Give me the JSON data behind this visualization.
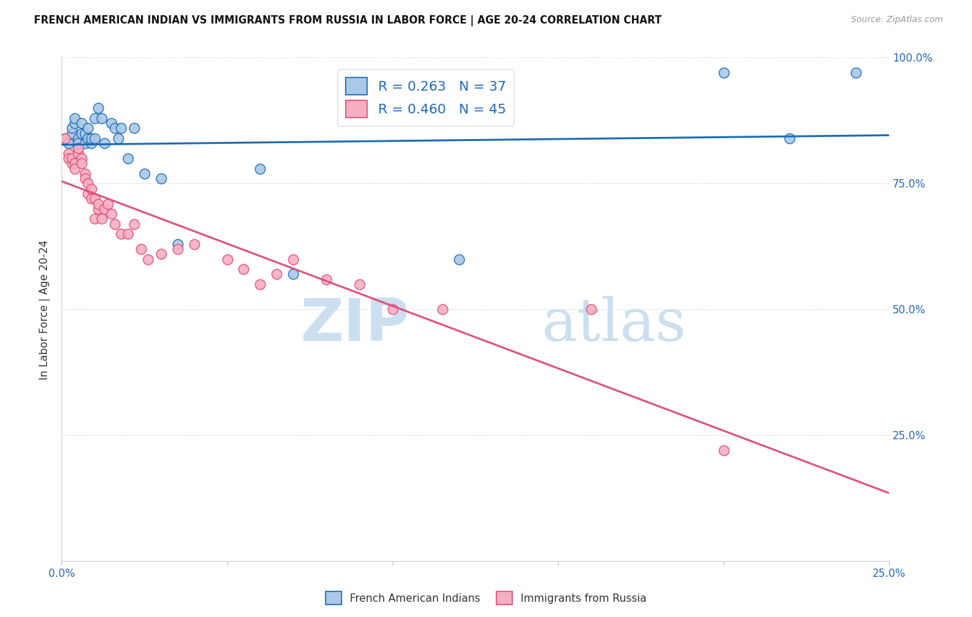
{
  "title": "FRENCH AMERICAN INDIAN VS IMMIGRANTS FROM RUSSIA IN LABOR FORCE | AGE 20-24 CORRELATION CHART",
  "source": "Source: ZipAtlas.com",
  "ylabel": "In Labor Force | Age 20-24",
  "x_min": 0.0,
  "x_max": 0.25,
  "y_min": 0.0,
  "y_max": 1.0,
  "x_ticks": [
    0.0,
    0.05,
    0.1,
    0.15,
    0.2,
    0.25
  ],
  "x_tick_labels": [
    "0.0%",
    "",
    "",
    "",
    "",
    "25.0%"
  ],
  "y_ticks": [
    0.0,
    0.25,
    0.5,
    0.75,
    1.0
  ],
  "y_tick_labels_right": [
    "",
    "25.0%",
    "50.0%",
    "75.0%",
    "100.0%"
  ],
  "blue_label": "French American Indians",
  "pink_label": "Immigrants from Russia",
  "blue_R": 0.263,
  "blue_N": 37,
  "pink_R": 0.46,
  "pink_N": 45,
  "blue_color": "#aac8e8",
  "pink_color": "#f5afc0",
  "blue_line_color": "#1a6bb5",
  "pink_line_color": "#e0507a",
  "watermark_zip": "ZIP",
  "watermark_atlas": "atlas",
  "blue_x": [
    0.001,
    0.002,
    0.003,
    0.003,
    0.004,
    0.004,
    0.005,
    0.005,
    0.005,
    0.006,
    0.006,
    0.007,
    0.007,
    0.008,
    0.008,
    0.009,
    0.009,
    0.01,
    0.01,
    0.011,
    0.012,
    0.013,
    0.015,
    0.016,
    0.017,
    0.018,
    0.02,
    0.022,
    0.025,
    0.03,
    0.035,
    0.06,
    0.07,
    0.12,
    0.2,
    0.22,
    0.24
  ],
  "blue_y": [
    0.84,
    0.83,
    0.85,
    0.86,
    0.87,
    0.88,
    0.84,
    0.83,
    0.82,
    0.87,
    0.85,
    0.85,
    0.83,
    0.84,
    0.86,
    0.83,
    0.84,
    0.84,
    0.88,
    0.9,
    0.88,
    0.83,
    0.87,
    0.86,
    0.84,
    0.86,
    0.8,
    0.86,
    0.77,
    0.76,
    0.63,
    0.78,
    0.57,
    0.6,
    0.97,
    0.84,
    0.97
  ],
  "pink_x": [
    0.001,
    0.002,
    0.002,
    0.003,
    0.003,
    0.004,
    0.004,
    0.005,
    0.005,
    0.006,
    0.006,
    0.007,
    0.007,
    0.008,
    0.008,
    0.009,
    0.009,
    0.01,
    0.01,
    0.011,
    0.011,
    0.012,
    0.013,
    0.014,
    0.015,
    0.016,
    0.018,
    0.02,
    0.022,
    0.024,
    0.026,
    0.03,
    0.035,
    0.04,
    0.05,
    0.055,
    0.06,
    0.065,
    0.07,
    0.08,
    0.09,
    0.1,
    0.115,
    0.16,
    0.2
  ],
  "pink_y": [
    0.84,
    0.81,
    0.8,
    0.79,
    0.8,
    0.79,
    0.78,
    0.81,
    0.82,
    0.8,
    0.79,
    0.77,
    0.76,
    0.75,
    0.73,
    0.74,
    0.72,
    0.72,
    0.68,
    0.7,
    0.71,
    0.68,
    0.7,
    0.71,
    0.69,
    0.67,
    0.65,
    0.65,
    0.67,
    0.62,
    0.6,
    0.61,
    0.62,
    0.63,
    0.6,
    0.58,
    0.55,
    0.57,
    0.6,
    0.56,
    0.55,
    0.5,
    0.5,
    0.5,
    0.22
  ]
}
